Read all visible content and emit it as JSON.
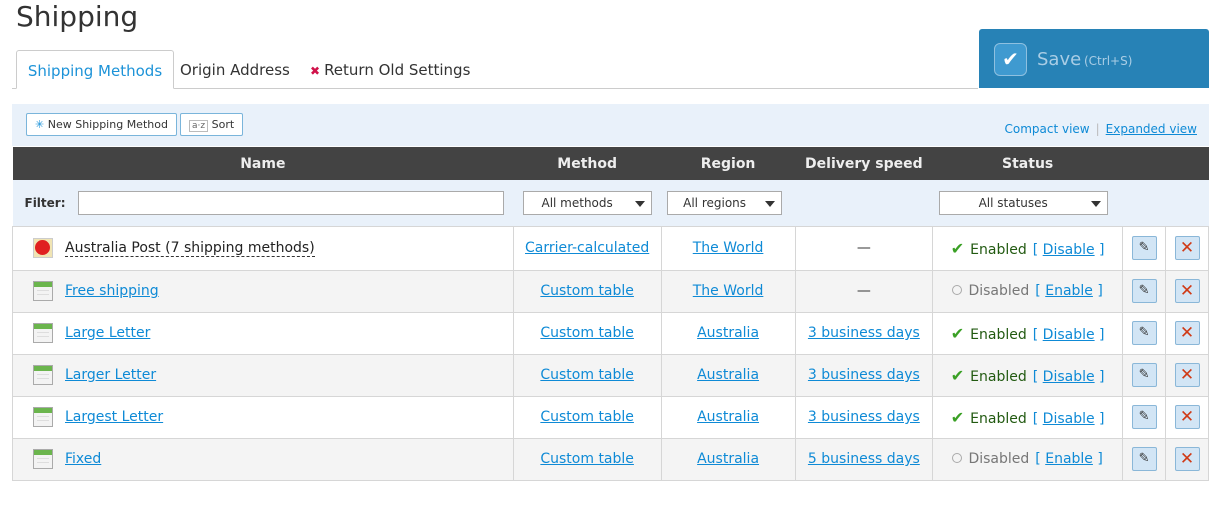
{
  "page": {
    "title": "Shipping"
  },
  "tabs": [
    {
      "label": "Shipping Methods"
    },
    {
      "label": "Origin Address"
    },
    {
      "label": "Return Old Settings"
    }
  ],
  "save": {
    "label": "Save",
    "shortcut": "(Ctrl+S)"
  },
  "toolbar": {
    "new_label": "New Shipping Method",
    "sort_label": "Sort",
    "sort_icon": "a·z",
    "compact": "Compact view",
    "expanded": "Expanded view"
  },
  "columns": [
    "Name",
    "Method",
    "Region",
    "Delivery speed",
    "Status"
  ],
  "filter": {
    "label": "Filter:",
    "value": "",
    "method": "All methods",
    "region": "All regions",
    "status": "All statuses"
  },
  "rows": [
    {
      "name": "Australia Post (7 shipping methods)",
      "icon": "australia-post-icon",
      "method": "Carrier-calculated",
      "region": "The World",
      "speed": "—",
      "status": "Enabled",
      "action": "Disable"
    },
    {
      "name": "Free shipping",
      "icon": "table-icon",
      "method": "Custom table",
      "region": "The World",
      "speed": "—",
      "status": "Disabled",
      "action": "Enable"
    },
    {
      "name": "Large Letter",
      "icon": "table-icon",
      "method": "Custom table",
      "region": "Australia",
      "speed": "3 business days",
      "status": "Enabled",
      "action": "Disable"
    },
    {
      "name": "Larger Letter",
      "icon": "table-icon",
      "method": "Custom table",
      "region": "Australia",
      "speed": "3 business days",
      "status": "Enabled",
      "action": "Disable"
    },
    {
      "name": "Largest Letter",
      "icon": "table-icon",
      "method": "Custom table",
      "region": "Australia",
      "speed": "3 business days",
      "status": "Enabled",
      "action": "Disable"
    },
    {
      "name": "Fixed",
      "icon": "table-icon",
      "method": "Custom table",
      "region": "Australia",
      "speed": "5 business days",
      "status": "Disabled",
      "action": "Enable"
    }
  ],
  "colors": {
    "accent": "#2782b6",
    "link": "#0e8ad6",
    "header": "#434343",
    "enabled": "#3aa025",
    "delete": "#d03a16"
  }
}
